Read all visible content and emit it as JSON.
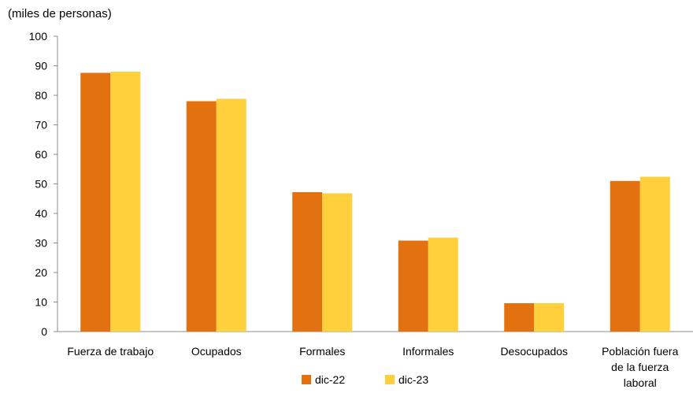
{
  "chart_data": {
    "type": "bar",
    "ylabel": "(miles de personas)",
    "ylim": [
      0,
      100
    ],
    "yticks": [
      0,
      10,
      20,
      30,
      40,
      50,
      60,
      70,
      80,
      90,
      100
    ],
    "grid": false,
    "legend_position": "bottom",
    "categories": [
      [
        "Fuerza de trabajo"
      ],
      [
        "Ocupados"
      ],
      [
        "Formales"
      ],
      [
        "Informales"
      ],
      [
        "Desocupados"
      ],
      [
        "Población fuera",
        "de la fuerza",
        "laboral"
      ]
    ],
    "series": [
      {
        "name": "dic-22",
        "color": "#E4710F",
        "values": [
          87.6,
          78.0,
          47.2,
          30.8,
          9.6,
          51.0
        ]
      },
      {
        "name": "dic-23",
        "color": "#FFD03C",
        "values": [
          88.0,
          78.8,
          46.8,
          31.8,
          9.6,
          52.4
        ]
      }
    ]
  }
}
